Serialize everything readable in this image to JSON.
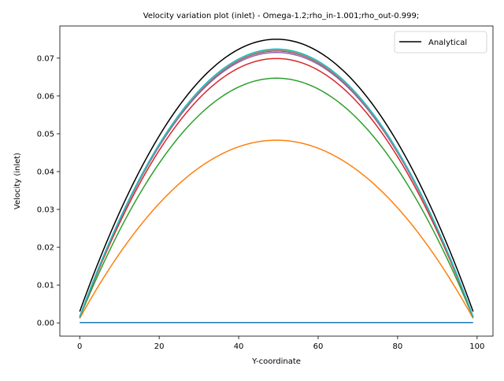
{
  "chart_data": {
    "type": "line",
    "title": "Velocity variation plot (inlet) -  Omega-1.2;rho_in-1.001;rho_out-0.999;",
    "xlabel": "Y-coordinate",
    "ylabel": "Velocity (inlet)",
    "xlim": [
      -5,
      104
    ],
    "ylim": [
      -0.0035,
      0.0785
    ],
    "xticks": [
      0,
      20,
      40,
      60,
      80,
      100
    ],
    "xtick_labels": [
      "0",
      "20",
      "40",
      "60",
      "80",
      "100"
    ],
    "yticks": [
      0.0,
      0.01,
      0.02,
      0.03,
      0.04,
      0.05,
      0.06,
      0.07
    ],
    "ytick_labels": [
      "0.00",
      "0.01",
      "0.02",
      "0.03",
      "0.04",
      "0.05",
      "0.06",
      "0.07"
    ],
    "grid": false,
    "legend_position": "top-right",
    "legend": [
      "Analytical"
    ],
    "x_range": [
      0,
      99
    ],
    "series": [
      {
        "name": "Analytical",
        "color": "#000000",
        "peak": 0.075,
        "peak_x": 49.5,
        "end_value": 0.003,
        "width": 1.5
      },
      {
        "color": "#1f77b4",
        "peak": 0.0001,
        "peak_x": 49.5,
        "end_value": 0.0001,
        "width": 1.5
      },
      {
        "color": "#ff7f0e",
        "peak": 0.0483,
        "peak_x": 49.5,
        "end_value": 0.0012,
        "width": 1.5
      },
      {
        "color": "#2ca02c",
        "peak": 0.0647,
        "peak_x": 49.5,
        "end_value": 0.0014,
        "width": 1.5
      },
      {
        "color": "#d62728",
        "peak": 0.0699,
        "peak_x": 49.5,
        "end_value": 0.0015,
        "width": 1.5
      },
      {
        "color": "#9467bd",
        "peak": 0.0715,
        "peak_x": 49.5,
        "end_value": 0.0016,
        "width": 1.5
      },
      {
        "color": "#8c564b",
        "peak": 0.0719,
        "peak_x": 49.5,
        "end_value": 0.0016,
        "width": 1.5
      },
      {
        "color": "#e377c2",
        "peak": 0.0721,
        "peak_x": 49.5,
        "end_value": 0.0016,
        "width": 1.5
      },
      {
        "color": "#7f7f7f",
        "peak": 0.0722,
        "peak_x": 49.5,
        "end_value": 0.0016,
        "width": 1.5
      },
      {
        "color": "#bcbd22",
        "peak": 0.0723,
        "peak_x": 49.5,
        "end_value": 0.0016,
        "width": 1.5
      },
      {
        "color": "#17becf",
        "peak": 0.0724,
        "peak_x": 49.5,
        "end_value": 0.0016,
        "width": 1.5
      }
    ]
  }
}
